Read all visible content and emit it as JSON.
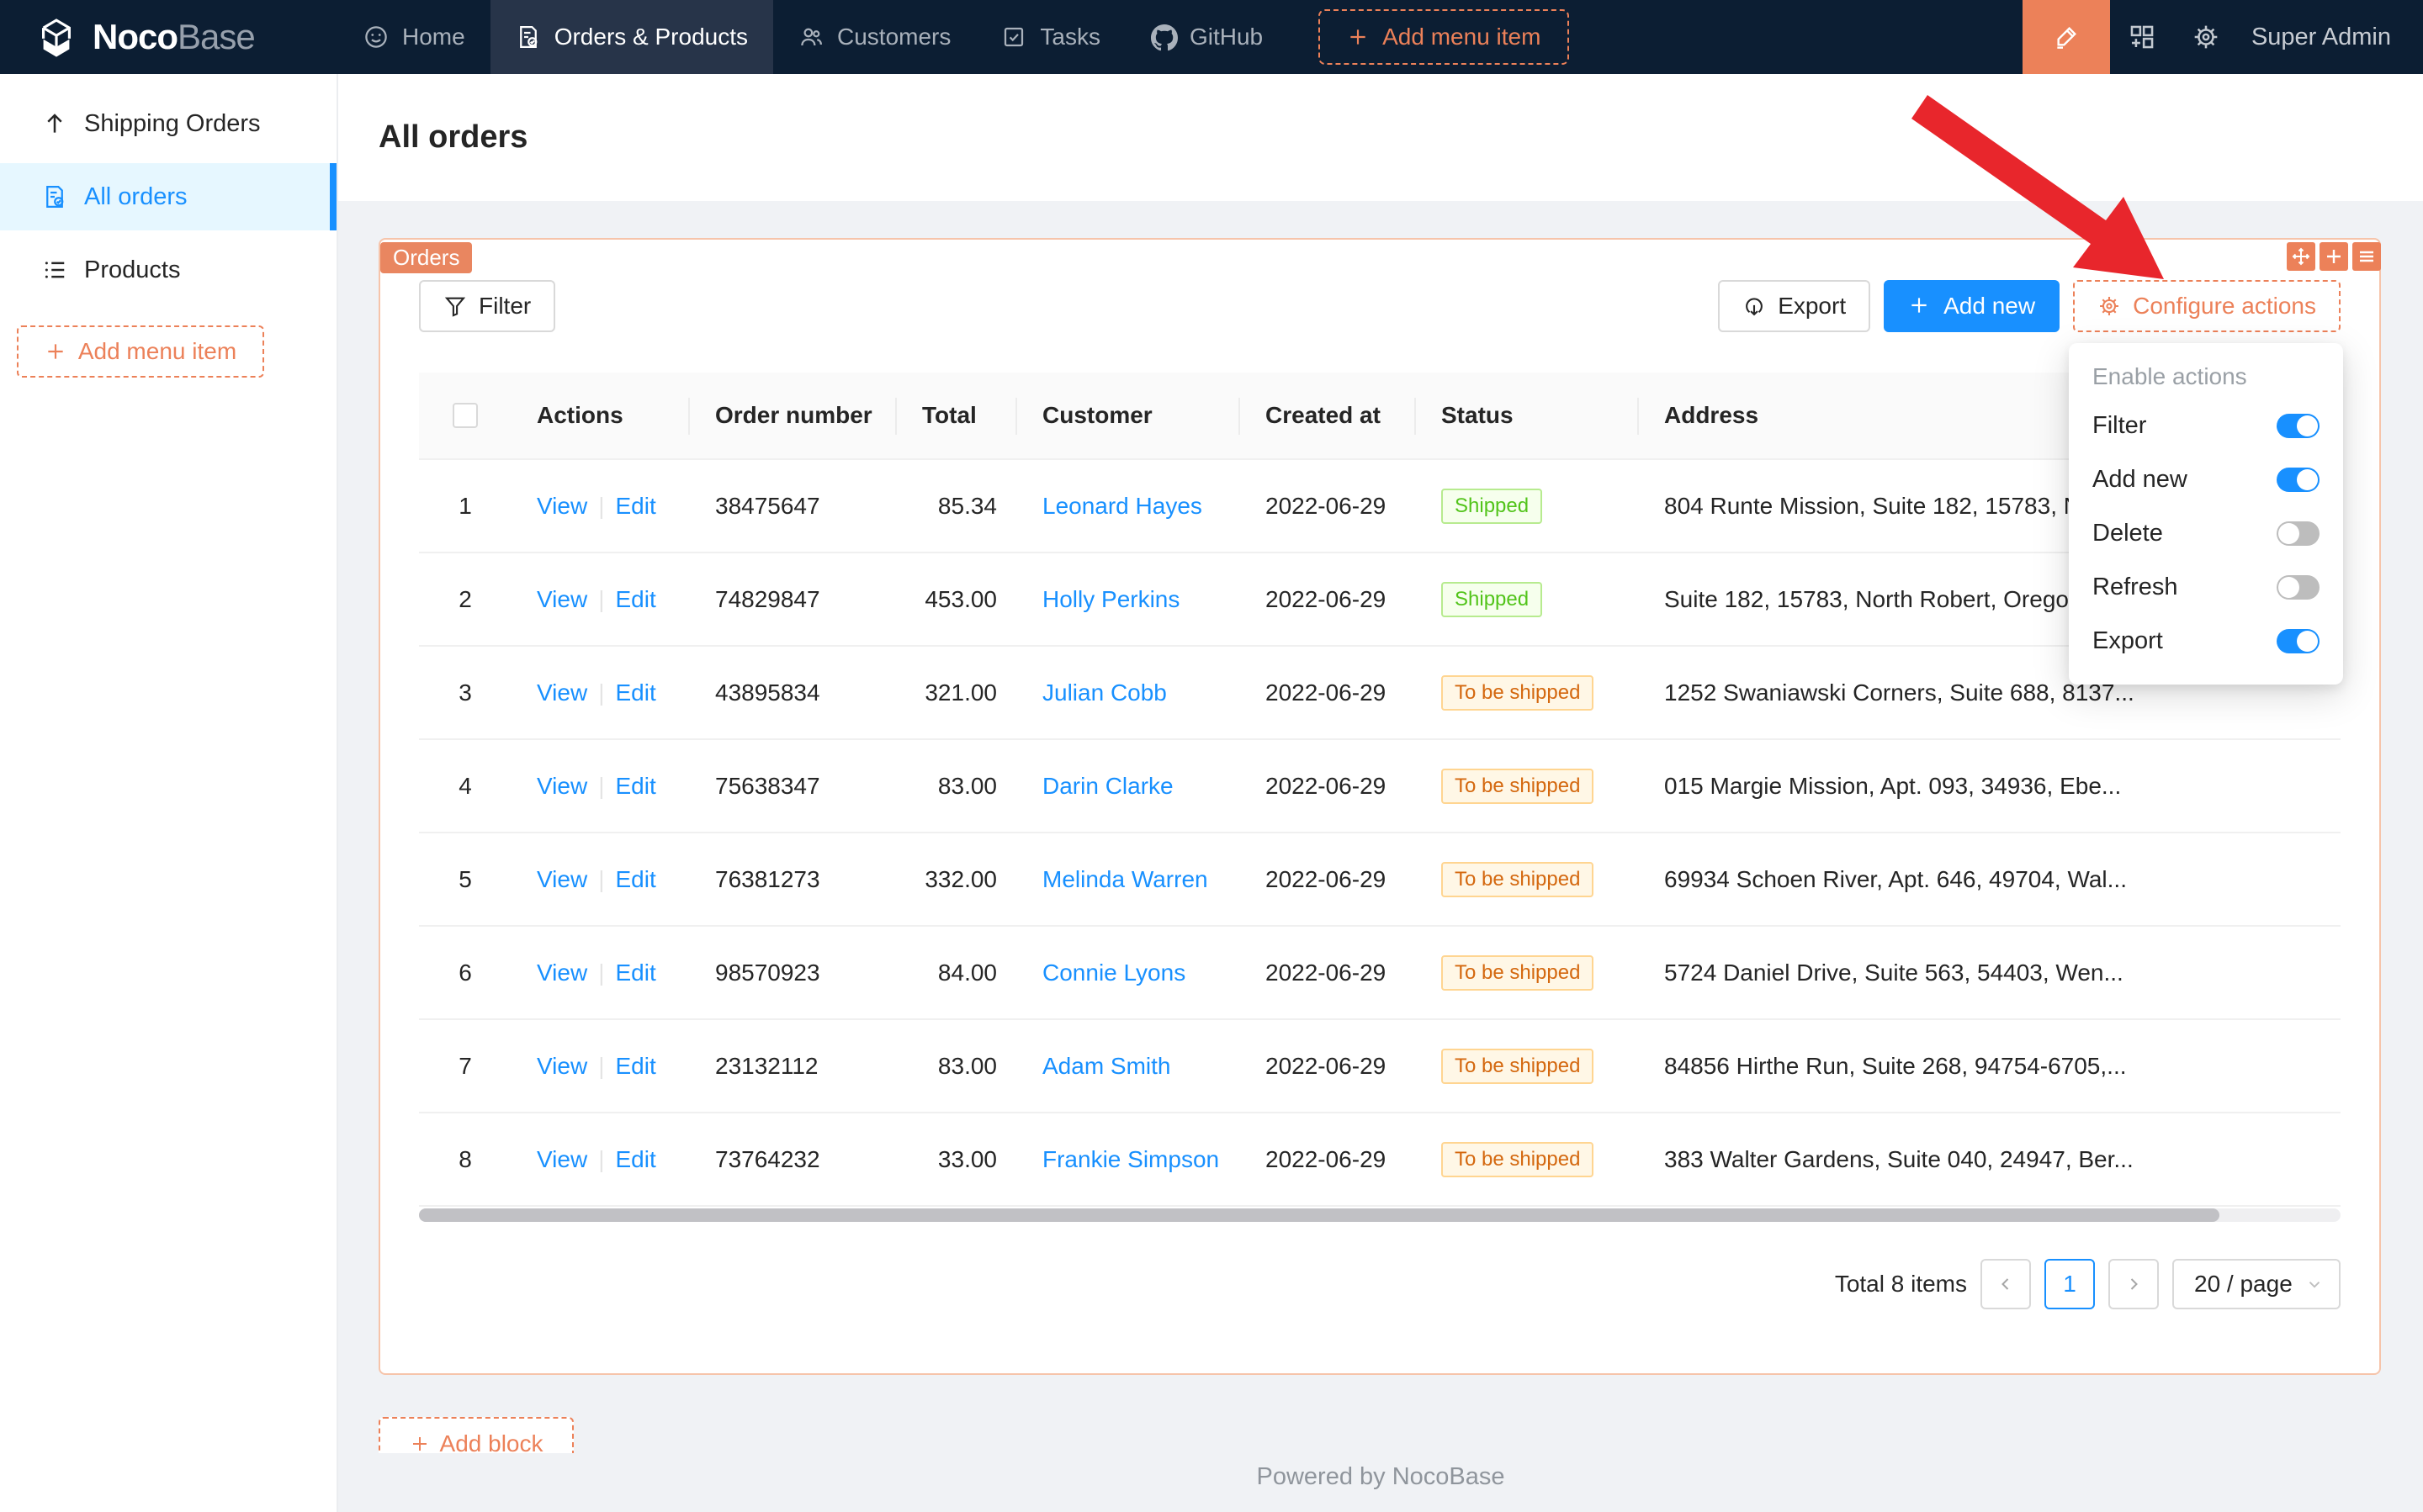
{
  "navbar": {
    "logo_primary": "Noco",
    "logo_secondary": "Base",
    "items": [
      {
        "label": "Home",
        "active": false
      },
      {
        "label": "Orders & Products",
        "active": true
      },
      {
        "label": "Customers",
        "active": false
      },
      {
        "label": "Tasks",
        "active": false
      },
      {
        "label": "GitHub",
        "active": false
      }
    ],
    "add_menu_item_label": "Add menu item",
    "user_name": "Super Admin"
  },
  "sidebar": {
    "items": [
      {
        "label": "Shipping Orders",
        "active": false
      },
      {
        "label": "All orders",
        "active": true
      },
      {
        "label": "Products",
        "active": false
      }
    ],
    "add_menu_item_label": "Add menu item"
  },
  "page": {
    "title": "All orders"
  },
  "orders_block": {
    "tag": "Orders",
    "toolbar": {
      "filter_label": "Filter",
      "export_label": "Export",
      "add_new_label": "Add new",
      "configure_actions_label": "Configure actions"
    }
  },
  "configure_dropdown": {
    "header": "Enable actions",
    "items": [
      {
        "label": "Filter",
        "enabled": true
      },
      {
        "label": "Add new",
        "enabled": true
      },
      {
        "label": "Delete",
        "enabled": false
      },
      {
        "label": "Refresh",
        "enabled": false
      },
      {
        "label": "Export",
        "enabled": true
      }
    ]
  },
  "table": {
    "headers": [
      "Actions",
      "Order number",
      "Total",
      "Customer",
      "Created at",
      "Status",
      "Address"
    ],
    "action_labels": [
      "View",
      "Edit"
    ],
    "action_separator": "|",
    "rows": [
      {
        "index": "1",
        "order_number": "38475647",
        "total": "85.34",
        "customer": "Leonard Hayes",
        "created_at": "2022-06-29",
        "status": "Shipped",
        "status_type": "green",
        "address": "804 Runte Mission, Suite 182, 15783, N"
      },
      {
        "index": "2",
        "order_number": "74829847",
        "total": "453.00",
        "customer": "Holly Perkins",
        "created_at": "2022-06-29",
        "status": "Shipped",
        "status_type": "green",
        "address": "Suite 182, 15783, North Robert, Oregon"
      },
      {
        "index": "3",
        "order_number": "43895834",
        "total": "321.00",
        "customer": "Julian Cobb",
        "created_at": "2022-06-29",
        "status": "To be shipped",
        "status_type": "orange",
        "address": "1252 Swaniawski Corners, Suite 688, 8137..."
      },
      {
        "index": "4",
        "order_number": "75638347",
        "total": "83.00",
        "customer": "Darin Clarke",
        "created_at": "2022-06-29",
        "status": "To be shipped",
        "status_type": "orange",
        "address": "015 Margie Mission, Apt. 093, 34936, Ebe..."
      },
      {
        "index": "5",
        "order_number": "76381273",
        "total": "332.00",
        "customer": "Melinda Warren",
        "created_at": "2022-06-29",
        "status": "To be shipped",
        "status_type": "orange",
        "address": "69934 Schoen River, Apt. 646, 49704, Wal..."
      },
      {
        "index": "6",
        "order_number": "98570923",
        "total": "84.00",
        "customer": "Connie Lyons",
        "created_at": "2022-06-29",
        "status": "To be shipped",
        "status_type": "orange",
        "address": "5724 Daniel Drive, Suite 563, 54403, Wen..."
      },
      {
        "index": "7",
        "order_number": "23132112",
        "total": "83.00",
        "customer": "Adam Smith",
        "created_at": "2022-06-29",
        "status": "To be shipped",
        "status_type": "orange",
        "address": "84856 Hirthe Run, Suite 268, 94754-6705,..."
      },
      {
        "index": "8",
        "order_number": "73764232",
        "total": "33.00",
        "customer": "Frankie Simpson",
        "created_at": "2022-06-29",
        "status": "To be shipped",
        "status_type": "orange",
        "address": "383 Walter Gardens, Suite 040, 24947, Ber..."
      }
    ]
  },
  "pagination": {
    "total_text": "Total 8 items",
    "current_page": "1",
    "page_size": "20 / page"
  },
  "add_block_label": "Add block",
  "footer": {
    "text": "Powered by NocoBase"
  },
  "colors": {
    "accent_orange": "#ec8159",
    "primary_blue": "#1890ff",
    "navbar_bg": "#0c1e33",
    "shipped_green": "#52c41a",
    "to_be_shipped_orange": "#d4680f"
  }
}
